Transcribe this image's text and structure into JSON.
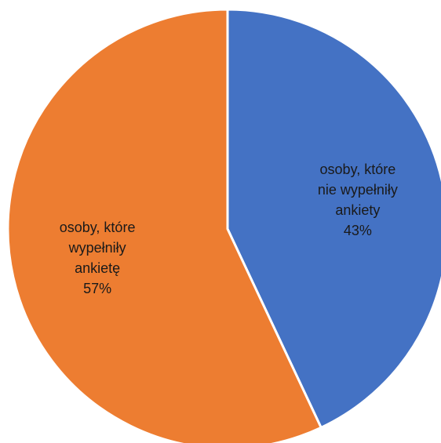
{
  "chart_data": {
    "type": "pie",
    "title": "",
    "slices": [
      {
        "label_lines": [
          "osoby, które",
          "nie wypełniły",
          "ankiety"
        ],
        "value": 43,
        "value_label": "43%",
        "color": "#4472C4"
      },
      {
        "label_lines": [
          "osoby, które",
          "wypełniły",
          "ankietę"
        ],
        "value": 57,
        "value_label": "57%",
        "color": "#ED7D31"
      }
    ],
    "start": "top",
    "direction": "clockwise",
    "legend": "none"
  }
}
